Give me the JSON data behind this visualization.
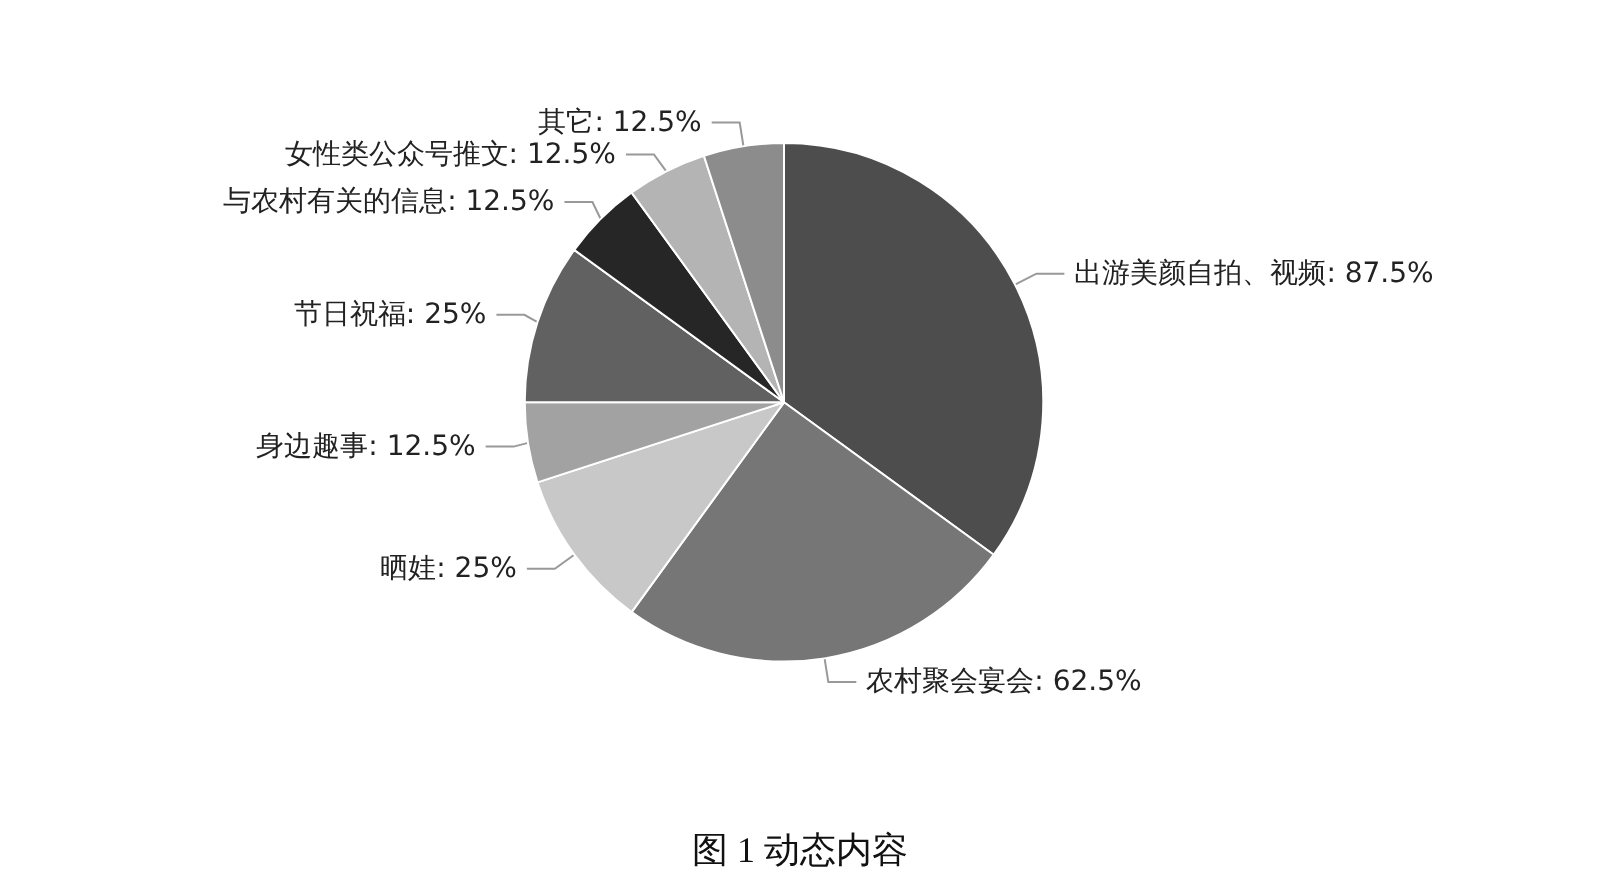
{
  "chart_data": {
    "type": "pie",
    "title": "图 1 动态内容",
    "categories": [
      "出游美颜自拍、视频",
      "农村聚会宴会",
      "晒娃",
      "身边趣事",
      "节日祝福",
      "与农村有关的信息",
      "女性类公众号推文",
      "其它"
    ],
    "values": [
      87.5,
      62.5,
      25,
      12.5,
      25,
      12.5,
      12.5,
      12.5
    ],
    "value_labels": [
      "87.5%",
      "62.5%",
      "25%",
      "12.5%",
      "25%",
      "12.5%",
      "12.5%",
      "12.5%"
    ],
    "colors": [
      "#4d4d4d",
      "#767676",
      "#c8c8c8",
      "#a2a2a2",
      "#616161",
      "#262626",
      "#b4b4b4",
      "#8c8c8c"
    ],
    "legend": false
  }
}
